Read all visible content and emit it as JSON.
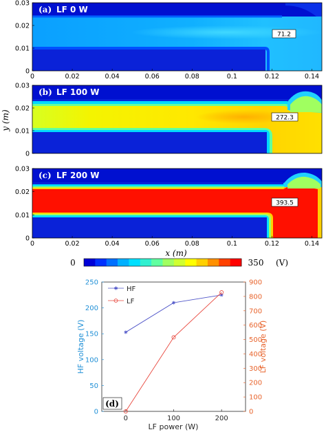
{
  "chart_data": [
    {
      "type": "heatmap",
      "panel": "a",
      "panel_label": "(a)",
      "title": "LF 0 W",
      "peak_label": "71.2",
      "xlabel": "x (m)",
      "ylabel": "y (m)",
      "xlim": [
        0,
        0.145
      ],
      "ylim": [
        0,
        0.03
      ],
      "x_ticks": [
        "0",
        "0.02",
        "0.04",
        "0.06",
        "0.08",
        "0.1",
        "0.12",
        "0.14"
      ],
      "y_ticks": [
        "0",
        "0.01",
        "0.02",
        "0.03"
      ]
    },
    {
      "type": "heatmap",
      "panel": "b",
      "panel_label": "(b)",
      "title": "LF 100 W",
      "peak_label": "272.3",
      "xlabel": "x (m)",
      "ylabel": "y (m)",
      "xlim": [
        0,
        0.145
      ],
      "ylim": [
        0,
        0.03
      ],
      "y_ticks": [
        "0",
        "0.01",
        "0.02",
        "0.03"
      ]
    },
    {
      "type": "heatmap",
      "panel": "c",
      "panel_label": "(c)",
      "title": "LF 200 W",
      "peak_label": "393.5",
      "xlabel": "x (m)",
      "ylabel": "y (m)",
      "xlim": [
        0,
        0.145
      ],
      "ylim": [
        0,
        0.03
      ],
      "x_ticks": [
        "0",
        "0.02",
        "0.04",
        "0.06",
        "0.08",
        "0.1",
        "0.12",
        "0.14"
      ],
      "y_ticks": [
        "0",
        "0.01",
        "0.02",
        "0.03"
      ]
    },
    {
      "type": "colorbar",
      "min_label": "0",
      "max_label": "350",
      "unit_label": "(V)",
      "range": [
        0,
        350
      ],
      "colors": [
        "#0000d8",
        "#0030ff",
        "#0070ff",
        "#00b0ff",
        "#00e0ff",
        "#30f0d0",
        "#60ffa0",
        "#a0ff60",
        "#d0ff30",
        "#ffff00",
        "#ffd000",
        "#ff9000",
        "#ff4000",
        "#ff0000"
      ]
    },
    {
      "type": "line",
      "panel": "d",
      "panel_label": "(d)",
      "xlabel": "LF power (W)",
      "x": [
        0,
        100,
        200
      ],
      "x_ticks": [
        "0",
        "100",
        "200"
      ],
      "xlim": [
        -50,
        250
      ],
      "left_axis": {
        "label": "HF voltage (V)",
        "ylim": [
          0,
          250
        ],
        "ticks": [
          "0",
          "50",
          "100",
          "150",
          "200",
          "250"
        ],
        "color": "#1f8fd6"
      },
      "right_axis": {
        "label": "LF voltage (V)",
        "ylim": [
          0,
          900
        ],
        "ticks": [
          "0",
          "100",
          "200",
          "300",
          "400",
          "500",
          "600",
          "700",
          "800",
          "900"
        ],
        "color": "#e8642c"
      },
      "series": [
        {
          "name": "HF",
          "axis": "left",
          "values": [
            153,
            210,
            225
          ],
          "color": "#4f55c8",
          "marker": "star"
        },
        {
          "name": "LF",
          "axis": "right",
          "values": [
            0,
            515,
            828
          ],
          "color": "#e8463c",
          "marker": "circle"
        }
      ],
      "legend_position": "top-left"
    }
  ]
}
